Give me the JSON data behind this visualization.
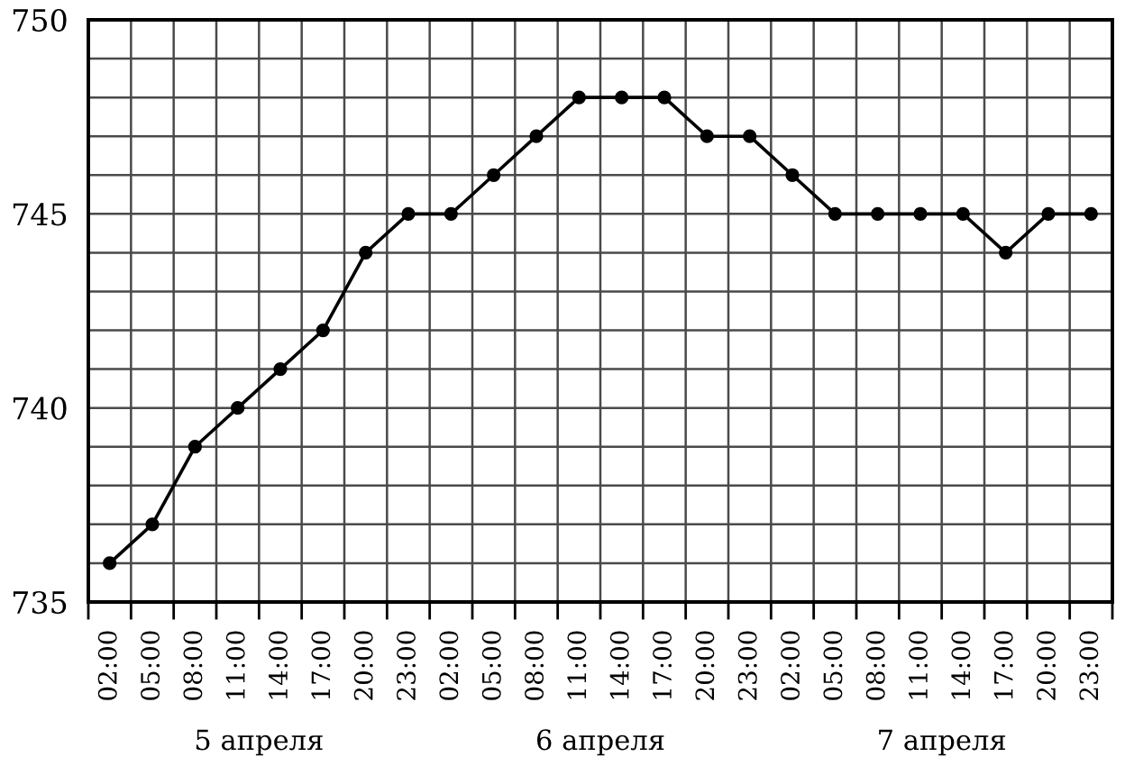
{
  "chart_data": {
    "type": "line",
    "categories": [
      "02:00",
      "05:00",
      "08:00",
      "11:00",
      "14:00",
      "17:00",
      "20:00",
      "23:00",
      "02:00",
      "05:00",
      "08:00",
      "11:00",
      "14:00",
      "17:00",
      "20:00",
      "23:00",
      "02:00",
      "05:00",
      "08:00",
      "11:00",
      "14:00",
      "17:00",
      "20:00",
      "23:00"
    ],
    "values": [
      736,
      737,
      739,
      740,
      741,
      742,
      744,
      745,
      745,
      746,
      747,
      748,
      748,
      748,
      747,
      747,
      746,
      745,
      745,
      745,
      745,
      744,
      745,
      745
    ],
    "color": "#000000",
    "marker": "circle",
    "line_style": "solid",
    "ylim": [
      735,
      750
    ],
    "yticks": [
      735,
      {
        "value": 736,
        "label": null
      },
      {
        "value": 737,
        "label": null
      },
      {
        "value": 738,
        "label": null
      },
      {
        "value": 739,
        "label": null
      },
      740,
      {
        "value": 741,
        "label": null
      },
      {
        "value": 742,
        "label": null
      },
      {
        "value": 743,
        "label": null
      },
      {
        "value": 744,
        "label": null
      },
      745,
      {
        "value": 746,
        "label": null
      },
      {
        "value": 747,
        "label": null
      },
      {
        "value": 748,
        "label": null
      },
      {
        "value": 749,
        "label": null
      },
      750
    ],
    "grid": true,
    "annotations": [
      "5 апреля",
      "6 апреля",
      "7 апреля"
    ]
  }
}
